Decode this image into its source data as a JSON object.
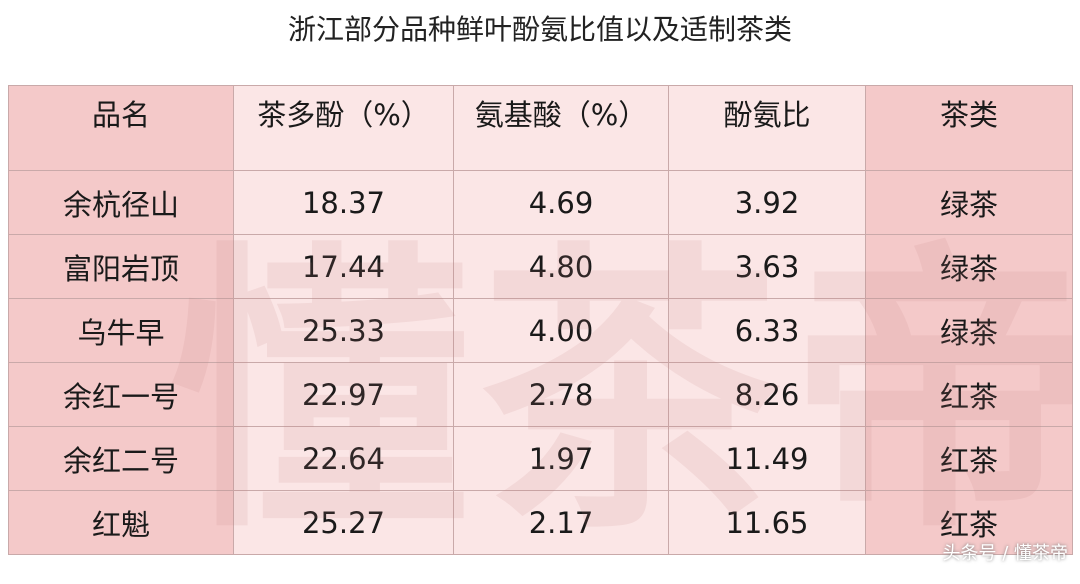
{
  "title": "浙江部分品种鲜叶酚氨比值以及适制茶类",
  "table": {
    "header": [
      "品名",
      "茶多酚（%）",
      "氨基酸（%）",
      "酚氨比",
      "茶类"
    ],
    "rows": [
      [
        "余杭径山",
        "18.37",
        "4.69",
        "3.92",
        "绿茶"
      ],
      [
        "富阳岩顶",
        "17.44",
        "4.80",
        "3.63",
        "绿茶"
      ],
      [
        "乌牛早",
        "25.33",
        "4.00",
        "6.33",
        "绿茶"
      ],
      [
        "余红一号",
        "22.97",
        "2.78",
        "8.26",
        "红茶"
      ],
      [
        "余红二号",
        "22.64",
        "1.97",
        "11.49",
        "红茶"
      ],
      [
        "红魁",
        "25.27",
        "2.17",
        "11.65",
        "红茶"
      ]
    ]
  },
  "watermark": "懂茶帝",
  "credit": "头条号 / 懂茶帝"
}
